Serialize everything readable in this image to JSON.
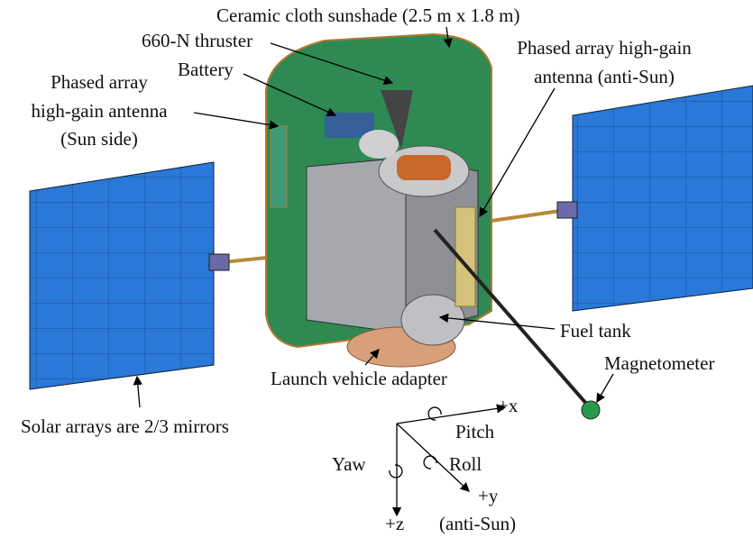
{
  "callouts": [
    {
      "lines": [
        "Ceramic cloth sunshade (2.5 m x 1.8 m)"
      ]
    },
    {
      "lines": [
        "660-N thruster"
      ]
    },
    {
      "lines": [
        "Battery"
      ]
    },
    {
      "lines": [
        "Phased array",
        "high-gain antenna",
        "(Sun side)"
      ]
    },
    {
      "lines": [
        "Phased array high-gain",
        "antenna (anti-Sun)"
      ]
    },
    {
      "lines": [
        "Fuel tank"
      ]
    },
    {
      "lines": [
        "Launch vehicle adapter"
      ]
    },
    {
      "lines": [
        "Magnetometer"
      ]
    },
    {
      "lines": [
        "Solar arrays are 2/3 mirrors"
      ]
    }
  ],
  "axes": {
    "x": "+x",
    "pitch": "Pitch",
    "yaw": "Yaw",
    "roll": "Roll",
    "y": "+y",
    "y_note": "(anti-Sun)",
    "z": "+z"
  }
}
